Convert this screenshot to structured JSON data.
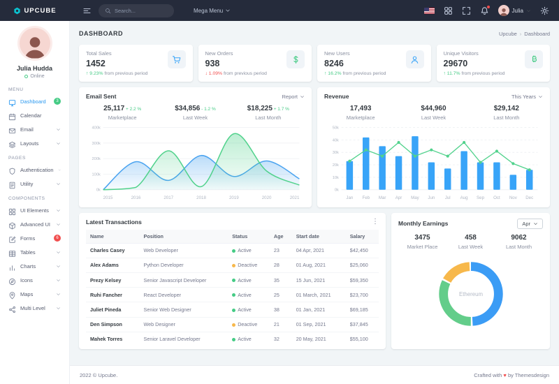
{
  "colors": {
    "primary": "#2b99f0",
    "chart_blue": "#38a4f8",
    "green": "#45cb85",
    "red": "#f14e4e",
    "orange": "#f7b84b",
    "topbar_bg": "#252b3b"
  },
  "topbar": {
    "logo": "UPCUBE",
    "search_placeholder": "Search...",
    "mega_menu": "Mega Menu",
    "user_name": "Julia"
  },
  "sidebar": {
    "user": {
      "name": "Julia Hudda",
      "status": "Online"
    },
    "sections": [
      {
        "label": "MENU",
        "items": [
          {
            "label": "Dashboard",
            "icon": "dashboard-icon",
            "active": true,
            "badge": "3",
            "badge_color": "#45cb85"
          },
          {
            "label": "Calendar",
            "icon": "calendar-icon"
          },
          {
            "label": "Email",
            "icon": "email-icon",
            "chevron": true
          },
          {
            "label": "Layouts",
            "icon": "layouts-icon",
            "chevron": true
          }
        ]
      },
      {
        "label": "PAGES",
        "items": [
          {
            "label": "Authentication",
            "icon": "authentication-icon",
            "chevron": true
          },
          {
            "label": "Utility",
            "icon": "utility-icon",
            "chevron": true
          }
        ]
      },
      {
        "label": "COMPONENTS",
        "items": [
          {
            "label": "UI Elements",
            "icon": "ui-elements-icon",
            "chevron": true
          },
          {
            "label": "Advanced UI",
            "icon": "advanced-ui-icon",
            "chevron": true
          },
          {
            "label": "Forms",
            "icon": "forms-icon",
            "badge": "6",
            "badge_color": "#f14e4e"
          },
          {
            "label": "Tables",
            "icon": "tables-icon",
            "chevron": true
          },
          {
            "label": "Charts",
            "icon": "charts-icon",
            "chevron": true
          },
          {
            "label": "Icons",
            "icon": "icons-icon",
            "chevron": true
          },
          {
            "label": "Maps",
            "icon": "maps-icon",
            "chevron": true
          },
          {
            "label": "Multi Level",
            "icon": "multi-level-icon",
            "chevron": true
          }
        ]
      }
    ]
  },
  "page": {
    "title": "DASHBOARD",
    "breadcrumb_home": "Upcube",
    "breadcrumb_current": "Dashboard"
  },
  "stat_cards": [
    {
      "label": "Total Sales",
      "value": "1452",
      "delta": "9.23%",
      "delta_dir": "up",
      "delta_color": "#45cb85",
      "suffix": "from previous period",
      "icon": "cart-icon",
      "icon_color": "#38a4f8"
    },
    {
      "label": "New Orders",
      "value": "938",
      "delta": "1.09%",
      "delta_dir": "down",
      "delta_color": "#f14e4e",
      "suffix": "from previous period",
      "icon": "dollar-icon",
      "icon_color": "#45cb85"
    },
    {
      "label": "New Users",
      "value": "8246",
      "delta": "16.2%",
      "delta_dir": "up",
      "delta_color": "#45cb85",
      "suffix": "from previous period",
      "icon": "user-icon",
      "icon_color": "#38a4f8"
    },
    {
      "label": "Unique Visitors",
      "value": "29670",
      "delta": "11.7%",
      "delta_dir": "up",
      "delta_color": "#45cb85",
      "suffix": "from previous period",
      "icon": "bitcoin-icon",
      "icon_color": "#45cb85"
    }
  ],
  "email_sent": {
    "title": "Email Sent",
    "menu_label": "Report",
    "stats": [
      {
        "value": "25,117",
        "delta": "+ 2.2 %",
        "label": "Marketplace"
      },
      {
        "value": "$34,856",
        "delta": "- 1.2 %",
        "label": "Last Week"
      },
      {
        "value": "$18,225",
        "delta": "+ 1.7 %",
        "label": "Last Month"
      }
    ],
    "chart_data": {
      "type": "area",
      "x": [
        "2015",
        "2016",
        "2017",
        "2018",
        "2019",
        "2020",
        "2021"
      ],
      "ylim": [
        0,
        400
      ],
      "ytick_labels": [
        "0k",
        "100k",
        "200k",
        "300k",
        "400k"
      ],
      "series": [
        {
          "name": "series-blue",
          "color": "#4aa3f0",
          "values": [
            0,
            180,
            60,
            220,
            85,
            185,
            70
          ]
        },
        {
          "name": "series-green",
          "color": "#51d28c",
          "values": [
            0,
            15,
            250,
            20,
            360,
            120,
            30
          ]
        }
      ]
    }
  },
  "revenue": {
    "title": "Revenue",
    "menu_label": "This Years",
    "stats": [
      {
        "value": "17,493",
        "label": "Marketplace"
      },
      {
        "value": "$44,960",
        "label": "Last Week"
      },
      {
        "value": "$29,142",
        "label": "Last Month"
      }
    ],
    "chart_data": {
      "type": "bar",
      "categories": [
        "Jan",
        "Feb",
        "Mar",
        "Apr",
        "May",
        "Jun",
        "Jul",
        "Aug",
        "Sep",
        "Oct",
        "Nov",
        "Dec"
      ],
      "ylim": [
        0,
        50
      ],
      "ytick_step": 10,
      "series": [
        {
          "name": "revenue-bars",
          "type": "bar",
          "color": "#38a4f8",
          "values": [
            23,
            42,
            35,
            27,
            43,
            22,
            17,
            31,
            22,
            22,
            12,
            16
          ]
        },
        {
          "name": "revenue-line",
          "type": "line",
          "color": "#51d28c",
          "values": [
            23,
            32,
            27,
            38,
            27,
            32,
            27,
            38,
            22,
            31,
            21,
            16
          ]
        }
      ]
    }
  },
  "transactions": {
    "title": "Latest Transactions",
    "columns": [
      "Name",
      "Position",
      "Status",
      "Age",
      "Start date",
      "Salary"
    ],
    "status_colors": {
      "Active": "#45cb85",
      "Deactive": "#f7b84b"
    },
    "rows": [
      {
        "name": "Charles Casey",
        "position": "Web Developer",
        "status": "Active",
        "age": "23",
        "start": "04 Apr, 2021",
        "salary": "$42,450"
      },
      {
        "name": "Alex Adams",
        "position": "Python Developer",
        "status": "Deactive",
        "age": "28",
        "start": "01 Aug, 2021",
        "salary": "$25,060"
      },
      {
        "name": "Prezy Kelsey",
        "position": "Senior Javascript Developer",
        "status": "Active",
        "age": "35",
        "start": "15 Jun, 2021",
        "salary": "$59,350"
      },
      {
        "name": "Ruhi Fancher",
        "position": "React Developer",
        "status": "Active",
        "age": "25",
        "start": "01 March, 2021",
        "salary": "$23,700"
      },
      {
        "name": "Juliet Pineda",
        "position": "Senior Web Designer",
        "status": "Active",
        "age": "38",
        "start": "01 Jan, 2021",
        "salary": "$69,185"
      },
      {
        "name": "Den Simpson",
        "position": "Web Designer",
        "status": "Deactive",
        "age": "21",
        "start": "01 Sep, 2021",
        "salary": "$37,845"
      },
      {
        "name": "Mahek Torres",
        "position": "Senior Laravel Developer",
        "status": "Active",
        "age": "32",
        "start": "20 May, 2021",
        "salary": "$55,100"
      }
    ]
  },
  "monthly_earnings": {
    "title": "Monthly Earnings",
    "menu_label": "Apr",
    "stats": [
      {
        "value": "3475",
        "label": "Market Place"
      },
      {
        "value": "458",
        "label": "Last Week"
      },
      {
        "value": "9062",
        "label": "Last Month"
      }
    ],
    "chart_data": {
      "type": "pie",
      "center_label": "Ethereum",
      "slices": [
        {
          "name": "slice-blue",
          "value": 50,
          "color": "#3b9cf5"
        },
        {
          "name": "slice-green",
          "value": 33,
          "color": "#63cd8a"
        },
        {
          "name": "slice-orange",
          "value": 17,
          "color": "#f7b84b"
        }
      ]
    }
  },
  "footer": {
    "left": "2022 © Upcube.",
    "crafted_prefix": "Crafted with",
    "heart": "♥",
    "crafted_suffix": "by Themesdesign"
  }
}
